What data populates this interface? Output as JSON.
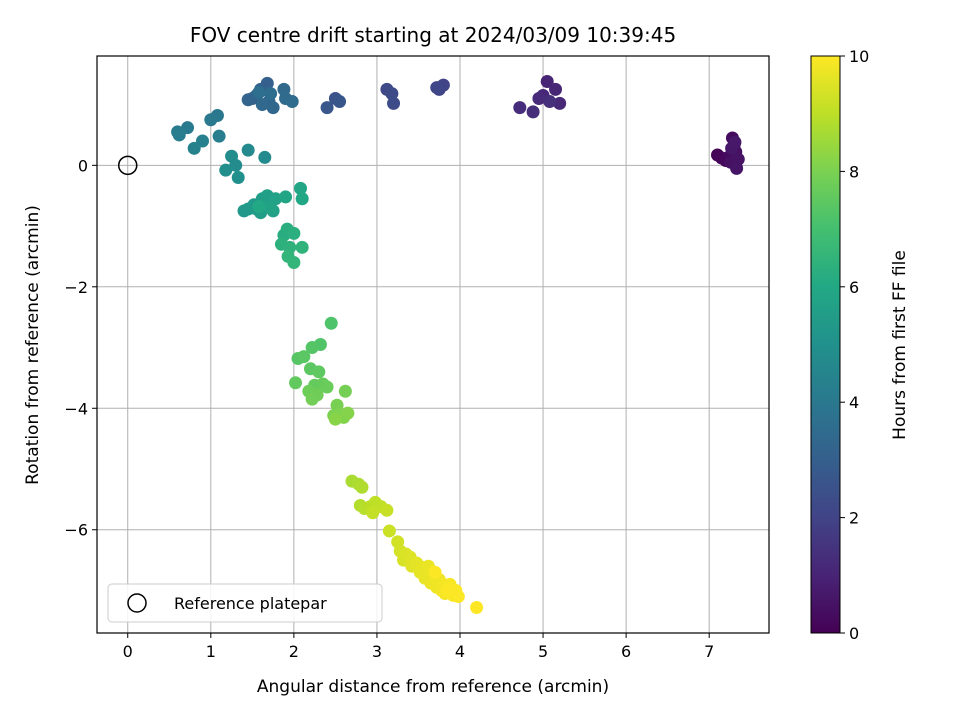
{
  "chart_data": {
    "type": "scatter",
    "title": "FOV centre drift starting at 2024/03/09 10:39:45",
    "xlabel": "Angular distance from reference (arcmin)",
    "ylabel": "Rotation from reference (arcmin)",
    "xlim": [
      -0.37,
      7.72
    ],
    "ylim": [
      -7.7,
      1.8
    ],
    "xticks": [
      0,
      1,
      2,
      3,
      4,
      5,
      6,
      7
    ],
    "yticks": [
      0,
      -2,
      -4,
      -6
    ],
    "grid": true,
    "colorbar": {
      "label": "Hours from first FF file",
      "range": [
        0,
        10
      ],
      "ticks": [
        0,
        2,
        4,
        6,
        8,
        10
      ],
      "colormap": "viridis"
    },
    "legend": {
      "placement": "lower-left",
      "entries": [
        {
          "label": "Reference platepar",
          "marker": "open-circle"
        }
      ]
    },
    "reference_point": {
      "x": 0,
      "y": 0
    },
    "points": [
      {
        "x": 7.1,
        "y": 0.17,
        "c": 0.1
      },
      {
        "x": 7.15,
        "y": 0.12,
        "c": 0.15
      },
      {
        "x": 7.2,
        "y": 0.08,
        "c": 0.2
      },
      {
        "x": 7.25,
        "y": 0.15,
        "c": 0.25
      },
      {
        "x": 7.28,
        "y": 0.45,
        "c": 0.3
      },
      {
        "x": 7.3,
        "y": 0.33,
        "c": 0.35
      },
      {
        "x": 7.32,
        "y": 0.22,
        "c": 0.4
      },
      {
        "x": 7.26,
        "y": 0.05,
        "c": 0.45
      },
      {
        "x": 7.35,
        "y": 0.1,
        "c": 0.5
      },
      {
        "x": 7.33,
        "y": -0.05,
        "c": 0.55
      },
      {
        "x": 7.27,
        "y": 0.28,
        "c": 0.6
      },
      {
        "x": 7.31,
        "y": 0.38,
        "c": 0.65
      },
      {
        "x": 5.05,
        "y": 1.38,
        "c": 1.0
      },
      {
        "x": 5.15,
        "y": 1.25,
        "c": 1.05
      },
      {
        "x": 5.0,
        "y": 1.15,
        "c": 1.1
      },
      {
        "x": 5.2,
        "y": 1.02,
        "c": 1.15
      },
      {
        "x": 4.95,
        "y": 1.1,
        "c": 1.2
      },
      {
        "x": 4.72,
        "y": 0.95,
        "c": 1.25
      },
      {
        "x": 4.88,
        "y": 0.88,
        "c": 1.3
      },
      {
        "x": 5.08,
        "y": 1.05,
        "c": 1.35
      },
      {
        "x": 3.8,
        "y": 1.32,
        "c": 2.0
      },
      {
        "x": 3.75,
        "y": 1.25,
        "c": 2.05
      },
      {
        "x": 3.72,
        "y": 1.28,
        "c": 2.1
      },
      {
        "x": 3.12,
        "y": 1.25,
        "c": 2.2
      },
      {
        "x": 3.2,
        "y": 1.02,
        "c": 2.25
      },
      {
        "x": 3.18,
        "y": 1.18,
        "c": 2.3
      },
      {
        "x": 2.5,
        "y": 1.1,
        "c": 2.6
      },
      {
        "x": 2.55,
        "y": 1.05,
        "c": 2.65
      },
      {
        "x": 2.4,
        "y": 0.95,
        "c": 2.7
      },
      {
        "x": 1.68,
        "y": 1.35,
        "c": 3.0
      },
      {
        "x": 1.6,
        "y": 1.25,
        "c": 3.05
      },
      {
        "x": 1.55,
        "y": 1.15,
        "c": 3.1
      },
      {
        "x": 1.5,
        "y": 1.1,
        "c": 3.15
      },
      {
        "x": 1.45,
        "y": 1.08,
        "c": 3.2
      },
      {
        "x": 1.7,
        "y": 1.05,
        "c": 3.25
      },
      {
        "x": 1.75,
        "y": 0.95,
        "c": 3.3
      },
      {
        "x": 1.62,
        "y": 1.0,
        "c": 3.35
      },
      {
        "x": 1.88,
        "y": 1.25,
        "c": 3.4
      },
      {
        "x": 1.9,
        "y": 1.1,
        "c": 3.45
      },
      {
        "x": 1.98,
        "y": 1.05,
        "c": 3.5
      },
      {
        "x": 1.72,
        "y": 1.18,
        "c": 3.55
      },
      {
        "x": 1.58,
        "y": 1.2,
        "c": 3.6
      },
      {
        "x": 1.08,
        "y": 0.82,
        "c": 4.0
      },
      {
        "x": 1.0,
        "y": 0.75,
        "c": 4.05
      },
      {
        "x": 0.72,
        "y": 0.62,
        "c": 4.1
      },
      {
        "x": 0.6,
        "y": 0.55,
        "c": 4.15
      },
      {
        "x": 0.62,
        "y": 0.5,
        "c": 4.2
      },
      {
        "x": 1.1,
        "y": 0.48,
        "c": 4.25
      },
      {
        "x": 0.9,
        "y": 0.4,
        "c": 4.3
      },
      {
        "x": 0.8,
        "y": 0.28,
        "c": 4.35
      },
      {
        "x": 1.45,
        "y": 0.25,
        "c": 4.7
      },
      {
        "x": 1.65,
        "y": 0.13,
        "c": 4.75
      },
      {
        "x": 1.25,
        "y": 0.15,
        "c": 4.8
      },
      {
        "x": 1.3,
        "y": 0.0,
        "c": 4.85
      },
      {
        "x": 1.18,
        "y": -0.08,
        "c": 4.9
      },
      {
        "x": 1.33,
        "y": -0.2,
        "c": 4.95
      },
      {
        "x": 1.4,
        "y": -0.75,
        "c": 5.3
      },
      {
        "x": 1.45,
        "y": -0.72,
        "c": 5.35
      },
      {
        "x": 1.52,
        "y": -0.65,
        "c": 5.4
      },
      {
        "x": 1.55,
        "y": -0.72,
        "c": 5.45
      },
      {
        "x": 1.6,
        "y": -0.78,
        "c": 5.5
      },
      {
        "x": 1.62,
        "y": -0.55,
        "c": 5.55
      },
      {
        "x": 1.68,
        "y": -0.5,
        "c": 5.6
      },
      {
        "x": 1.72,
        "y": -0.6,
        "c": 5.65
      },
      {
        "x": 1.75,
        "y": -0.75,
        "c": 5.7
      },
      {
        "x": 1.78,
        "y": -0.55,
        "c": 5.75
      },
      {
        "x": 1.72,
        "y": -0.7,
        "c": 5.8
      },
      {
        "x": 1.9,
        "y": -0.52,
        "c": 5.85
      },
      {
        "x": 2.08,
        "y": -0.38,
        "c": 5.9
      },
      {
        "x": 2.1,
        "y": -0.55,
        "c": 5.95
      },
      {
        "x": 1.58,
        "y": -0.68,
        "c": 6.0
      },
      {
        "x": 1.88,
        "y": -1.15,
        "c": 6.2
      },
      {
        "x": 1.92,
        "y": -1.05,
        "c": 6.25
      },
      {
        "x": 2.0,
        "y": -1.12,
        "c": 6.3
      },
      {
        "x": 1.85,
        "y": -1.3,
        "c": 6.35
      },
      {
        "x": 1.95,
        "y": -1.35,
        "c": 6.4
      },
      {
        "x": 2.1,
        "y": -1.35,
        "c": 6.45
      },
      {
        "x": 1.93,
        "y": -1.5,
        "c": 6.5
      },
      {
        "x": 2.0,
        "y": -1.6,
        "c": 6.55
      },
      {
        "x": 2.45,
        "y": -2.6,
        "c": 7.2
      },
      {
        "x": 2.32,
        "y": -2.95,
        "c": 7.25
      },
      {
        "x": 2.22,
        "y": -3.0,
        "c": 7.3
      },
      {
        "x": 2.05,
        "y": -3.18,
        "c": 7.35
      },
      {
        "x": 2.12,
        "y": -3.15,
        "c": 7.4
      },
      {
        "x": 2.2,
        "y": -3.35,
        "c": 7.45
      },
      {
        "x": 2.3,
        "y": -3.4,
        "c": 7.5
      },
      {
        "x": 2.02,
        "y": -3.58,
        "c": 7.55
      },
      {
        "x": 2.25,
        "y": -3.62,
        "c": 7.6
      },
      {
        "x": 2.35,
        "y": -3.6,
        "c": 7.65
      },
      {
        "x": 2.4,
        "y": -3.65,
        "c": 7.7
      },
      {
        "x": 2.18,
        "y": -3.72,
        "c": 7.75
      },
      {
        "x": 2.28,
        "y": -3.78,
        "c": 7.8
      },
      {
        "x": 2.22,
        "y": -3.85,
        "c": 7.85
      },
      {
        "x": 2.62,
        "y": -3.72,
        "c": 7.9
      },
      {
        "x": 2.52,
        "y": -3.95,
        "c": 7.95
      },
      {
        "x": 2.48,
        "y": -4.12,
        "c": 8.0
      },
      {
        "x": 2.55,
        "y": -4.1,
        "c": 8.05
      },
      {
        "x": 2.6,
        "y": -4.15,
        "c": 8.1
      },
      {
        "x": 2.65,
        "y": -4.08,
        "c": 8.15
      },
      {
        "x": 2.5,
        "y": -4.18,
        "c": 8.2
      },
      {
        "x": 2.7,
        "y": -5.2,
        "c": 8.7
      },
      {
        "x": 2.78,
        "y": -5.25,
        "c": 8.75
      },
      {
        "x": 2.82,
        "y": -5.3,
        "c": 8.8
      },
      {
        "x": 2.8,
        "y": -5.6,
        "c": 8.85
      },
      {
        "x": 2.85,
        "y": -5.65,
        "c": 8.9
      },
      {
        "x": 2.92,
        "y": -5.62,
        "c": 8.95
      },
      {
        "x": 2.98,
        "y": -5.55,
        "c": 9.0
      },
      {
        "x": 3.05,
        "y": -5.62,
        "c": 9.05
      },
      {
        "x": 2.95,
        "y": -5.72,
        "c": 9.1
      },
      {
        "x": 3.12,
        "y": -5.68,
        "c": 9.15
      },
      {
        "x": 3.15,
        "y": -6.02,
        "c": 9.2
      },
      {
        "x": 3.25,
        "y": -6.2,
        "c": 9.3
      },
      {
        "x": 3.28,
        "y": -6.35,
        "c": 9.35
      },
      {
        "x": 3.32,
        "y": -6.5,
        "c": 9.4
      },
      {
        "x": 3.35,
        "y": -6.4,
        "c": 9.45
      },
      {
        "x": 3.4,
        "y": -6.45,
        "c": 9.5
      },
      {
        "x": 3.42,
        "y": -6.6,
        "c": 9.55
      },
      {
        "x": 3.48,
        "y": -6.55,
        "c": 9.6
      },
      {
        "x": 3.52,
        "y": -6.7,
        "c": 9.62
      },
      {
        "x": 3.55,
        "y": -6.62,
        "c": 9.64
      },
      {
        "x": 3.58,
        "y": -6.8,
        "c": 9.66
      },
      {
        "x": 3.6,
        "y": -6.75,
        "c": 9.68
      },
      {
        "x": 3.62,
        "y": -6.6,
        "c": 9.7
      },
      {
        "x": 3.65,
        "y": -6.88,
        "c": 9.72
      },
      {
        "x": 3.68,
        "y": -6.7,
        "c": 9.74
      },
      {
        "x": 3.7,
        "y": -6.85,
        "c": 9.76
      },
      {
        "x": 3.72,
        "y": -6.95,
        "c": 9.78
      },
      {
        "x": 3.75,
        "y": -6.82,
        "c": 9.8
      },
      {
        "x": 3.78,
        "y": -7.0,
        "c": 9.82
      },
      {
        "x": 3.8,
        "y": -6.9,
        "c": 9.84
      },
      {
        "x": 3.82,
        "y": -7.05,
        "c": 9.86
      },
      {
        "x": 3.85,
        "y": -6.95,
        "c": 9.88
      },
      {
        "x": 3.88,
        "y": -6.9,
        "c": 9.9
      },
      {
        "x": 3.9,
        "y": -7.02,
        "c": 9.92
      },
      {
        "x": 3.92,
        "y": -7.08,
        "c": 9.94
      },
      {
        "x": 3.95,
        "y": -7.0,
        "c": 9.96
      },
      {
        "x": 3.98,
        "y": -7.1,
        "c": 9.97
      },
      {
        "x": 3.7,
        "y": -6.7,
        "c": 9.98
      },
      {
        "x": 3.85,
        "y": -7.0,
        "c": 9.99
      },
      {
        "x": 4.2,
        "y": -7.28,
        "c": 10.0
      }
    ]
  }
}
